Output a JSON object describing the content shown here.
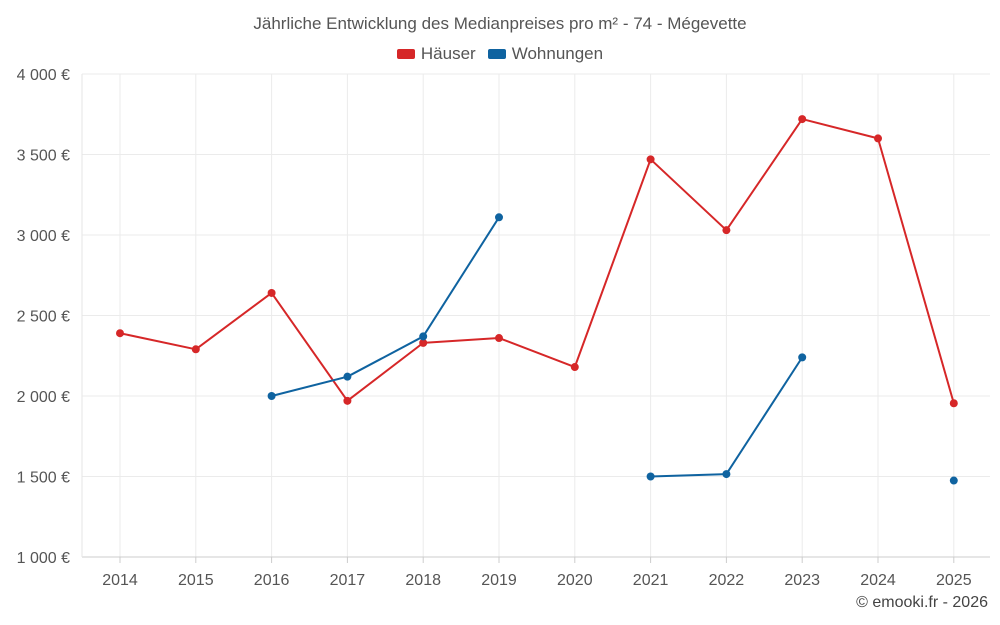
{
  "chart_data": {
    "type": "line",
    "title": "Jährliche Entwicklung des Medianpreises pro m² - 74 - Mégevette",
    "xlabel": "",
    "ylabel": "",
    "categories": [
      "2014",
      "2015",
      "2016",
      "2017",
      "2018",
      "2019",
      "2020",
      "2021",
      "2022",
      "2023",
      "2024",
      "2025"
    ],
    "ylim": [
      1000,
      4000
    ],
    "yticks": [
      1000,
      1500,
      2000,
      2500,
      3000,
      3500,
      4000
    ],
    "ytick_labels": [
      "1 000 €",
      "1 500 €",
      "2 000 €",
      "2 500 €",
      "3 000 €",
      "3 500 €",
      "4 000 €"
    ],
    "grid": true,
    "legend_position": "top-center",
    "series": [
      {
        "name": "Häuser",
        "color": "#d62728",
        "values": [
          2390,
          2290,
          2640,
          1970,
          2330,
          2360,
          2180,
          3470,
          3030,
          3720,
          3600,
          1955
        ]
      },
      {
        "name": "Wohnungen",
        "color": "#0f63a0",
        "values": [
          null,
          null,
          2000,
          2120,
          2370,
          3110,
          null,
          1500,
          1515,
          2240,
          null,
          1475
        ]
      }
    ]
  },
  "credit": "© emooki.fr - 2026"
}
